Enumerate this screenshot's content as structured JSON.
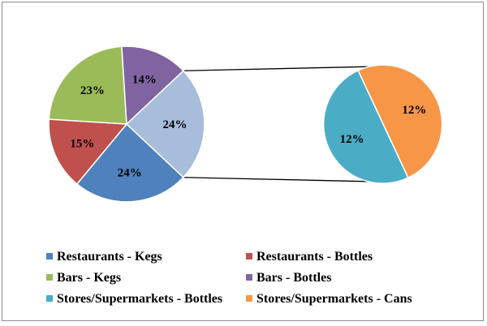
{
  "chart_data": {
    "type": "pie",
    "subtype": "pie-of-pie",
    "title": "",
    "legend_position": "bottom",
    "slices": [
      {
        "name": "Restaurants - Kegs",
        "value": 24,
        "label": "24%",
        "color": "#4f81bd"
      },
      {
        "name": "Restaurants - Bottles",
        "value": 15,
        "label": "15%",
        "color": "#c0504d"
      },
      {
        "name": "Bars - Kegs",
        "value": 23,
        "label": "23%",
        "color": "#9bbb59"
      },
      {
        "name": "Bars - Bottles",
        "value": 14,
        "label": "14%",
        "color": "#8064a2"
      },
      {
        "name": "Stores/Supermarkets - Bottles",
        "value": 12,
        "label": "12%",
        "color": "#4bacc6",
        "in_secondary": true
      },
      {
        "name": "Stores/Supermarkets - Cans",
        "value": 12,
        "label": "12%",
        "color": "#f79646",
        "in_secondary": true
      }
    ],
    "other_slice": {
      "value": 24,
      "label": "24%",
      "color": "#a8bcdc"
    }
  }
}
